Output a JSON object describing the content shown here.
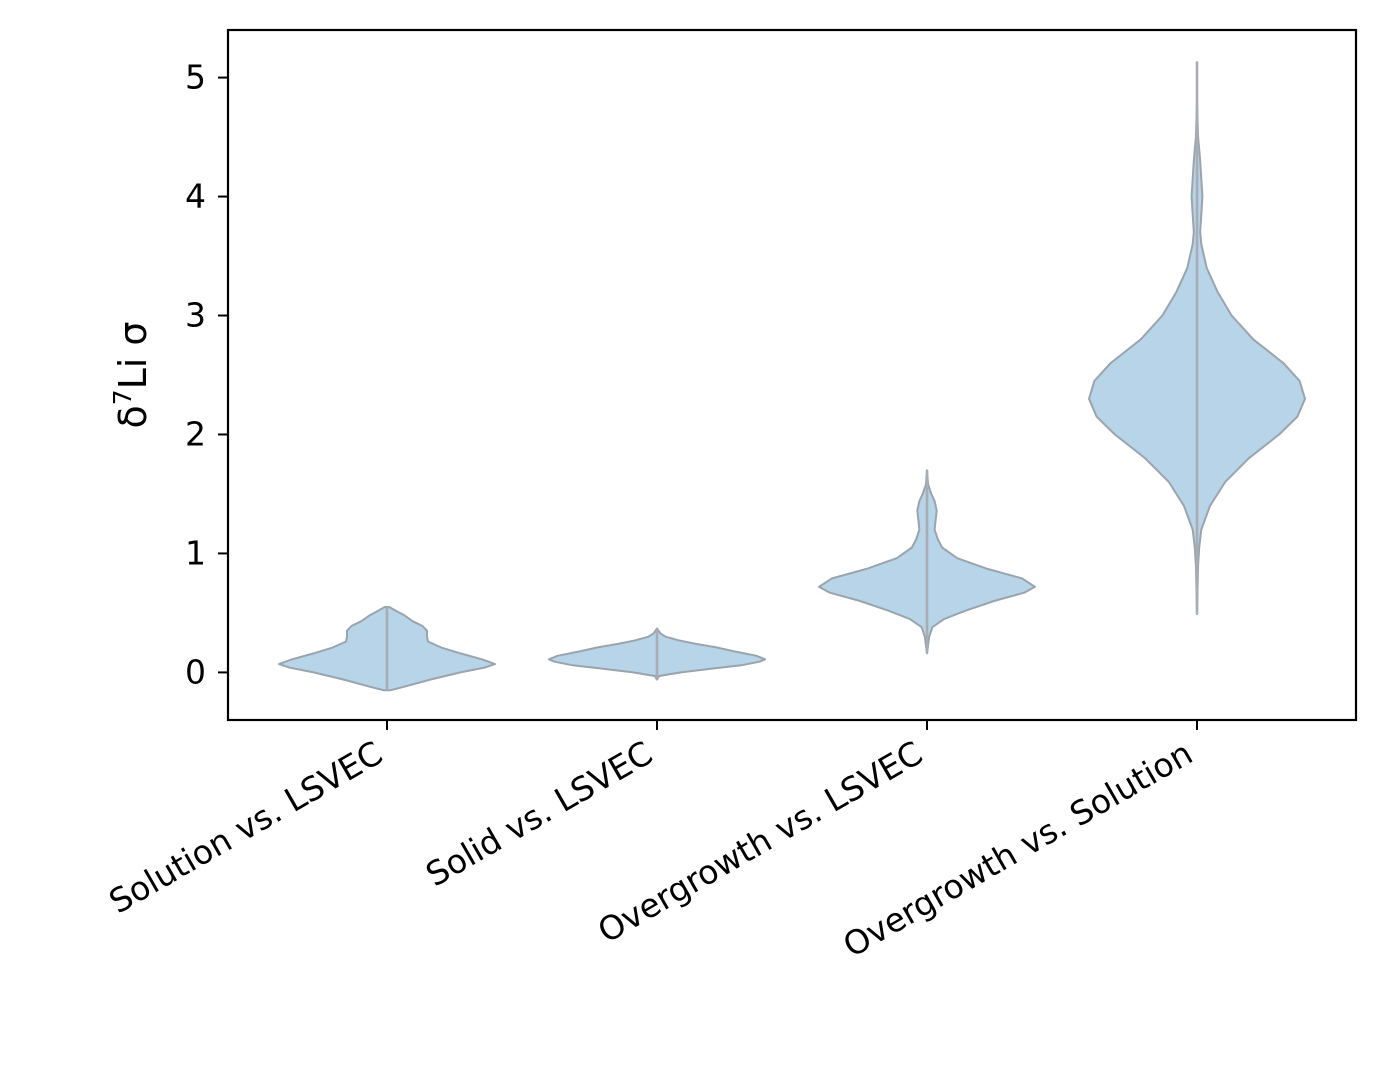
{
  "chart_data": {
    "type": "violin",
    "title": "",
    "xlabel": "",
    "ylabel": "δ⁷Li σ",
    "ylabel_parts": {
      "delta": "δ",
      "superscript": "7",
      "rest": "Li σ"
    },
    "ylim": [
      -0.4,
      5.4
    ],
    "yticks": [
      0,
      1,
      2,
      3,
      4,
      5
    ],
    "ytick_labels": [
      "0",
      "1",
      "2",
      "3",
      "4",
      "5"
    ],
    "grid": false,
    "legend": "none",
    "fill_color": "#b8d4e8",
    "edge_color": "#9aa4ad",
    "categories": [
      "Solution vs. LSVEC",
      "Solid vs. LSVEC",
      "Overgrowth vs. LSVEC",
      "Overgrowth vs. Solution"
    ],
    "violins": [
      {
        "category": "Solution vs. LSVEC",
        "min": -0.15,
        "max": 0.55,
        "profile": [
          [
            -0.15,
            0.03
          ],
          [
            -0.12,
            0.16
          ],
          [
            -0.06,
            0.4
          ],
          [
            0.0,
            0.68
          ],
          [
            0.04,
            0.9
          ],
          [
            0.07,
            1.0
          ],
          [
            0.11,
            0.88
          ],
          [
            0.16,
            0.68
          ],
          [
            0.21,
            0.5
          ],
          [
            0.26,
            0.38
          ],
          [
            0.3,
            0.37
          ],
          [
            0.35,
            0.37
          ],
          [
            0.39,
            0.33
          ],
          [
            0.43,
            0.24
          ],
          [
            0.48,
            0.16
          ],
          [
            0.52,
            0.08
          ],
          [
            0.55,
            0.02
          ]
        ]
      },
      {
        "category": "Solid vs. LSVEC",
        "min": -0.06,
        "max": 0.37,
        "profile": [
          [
            -0.06,
            0.0
          ],
          [
            -0.03,
            0.02
          ],
          [
            0.0,
            0.22
          ],
          [
            0.03,
            0.5
          ],
          [
            0.06,
            0.78
          ],
          [
            0.09,
            0.95
          ],
          [
            0.11,
            1.0
          ],
          [
            0.14,
            0.92
          ],
          [
            0.18,
            0.7
          ],
          [
            0.21,
            0.55
          ],
          [
            0.24,
            0.36
          ],
          [
            0.27,
            0.2
          ],
          [
            0.3,
            0.08
          ],
          [
            0.33,
            0.03
          ],
          [
            0.37,
            0.0
          ]
        ]
      },
      {
        "category": "Overgrowth vs. LSVEC",
        "min": 0.16,
        "max": 1.7,
        "profile": [
          [
            0.16,
            0.0
          ],
          [
            0.3,
            0.02
          ],
          [
            0.38,
            0.05
          ],
          [
            0.45,
            0.16
          ],
          [
            0.52,
            0.36
          ],
          [
            0.6,
            0.62
          ],
          [
            0.67,
            0.9
          ],
          [
            0.72,
            1.0
          ],
          [
            0.79,
            0.88
          ],
          [
            0.87,
            0.56
          ],
          [
            0.96,
            0.28
          ],
          [
            1.05,
            0.14
          ],
          [
            1.12,
            0.1
          ],
          [
            1.2,
            0.07
          ],
          [
            1.28,
            0.08
          ],
          [
            1.36,
            0.09
          ],
          [
            1.44,
            0.07
          ],
          [
            1.5,
            0.04
          ],
          [
            1.58,
            0.01
          ],
          [
            1.7,
            0.0
          ]
        ]
      },
      {
        "category": "Overgrowth vs. Solution",
        "min": 0.49,
        "max": 5.13,
        "profile": [
          [
            0.49,
            0.0
          ],
          [
            0.9,
            0.01
          ],
          [
            1.05,
            0.02
          ],
          [
            1.2,
            0.04
          ],
          [
            1.4,
            0.12
          ],
          [
            1.6,
            0.26
          ],
          [
            1.8,
            0.48
          ],
          [
            2.0,
            0.76
          ],
          [
            2.15,
            0.93
          ],
          [
            2.3,
            1.0
          ],
          [
            2.45,
            0.95
          ],
          [
            2.6,
            0.8
          ],
          [
            2.8,
            0.52
          ],
          [
            3.0,
            0.32
          ],
          [
            3.2,
            0.19
          ],
          [
            3.4,
            0.09
          ],
          [
            3.6,
            0.04
          ],
          [
            3.7,
            0.03
          ],
          [
            3.85,
            0.04
          ],
          [
            4.0,
            0.05
          ],
          [
            4.15,
            0.04
          ],
          [
            4.3,
            0.03
          ],
          [
            4.5,
            0.01
          ],
          [
            4.8,
            0.0
          ],
          [
            5.13,
            0.0
          ]
        ]
      }
    ]
  }
}
